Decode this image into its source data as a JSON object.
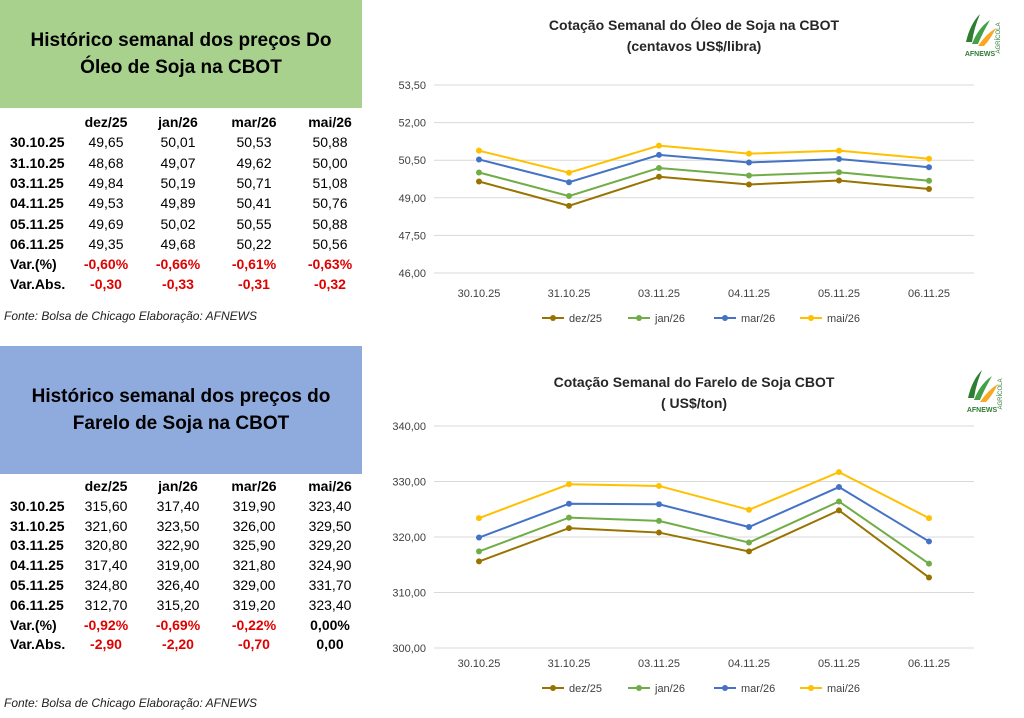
{
  "oil": {
    "table_title": "Histórico semanal dos preços Do Óleo de Soja na CBOT",
    "columns": [
      "dez/25",
      "jan/26",
      "mar/26",
      "mai/26"
    ],
    "rows": [
      {
        "date": "30.10.25",
        "values": [
          "49,65",
          "50,01",
          "50,53",
          "50,88"
        ]
      },
      {
        "date": "31.10.25",
        "values": [
          "48,68",
          "49,07",
          "49,62",
          "50,00"
        ]
      },
      {
        "date": "03.11.25",
        "values": [
          "49,84",
          "50,19",
          "50,71",
          "51,08"
        ]
      },
      {
        "date": "04.11.25",
        "values": [
          "49,53",
          "49,89",
          "50,41",
          "50,76"
        ]
      },
      {
        "date": "05.11.25",
        "values": [
          "49,69",
          "50,02",
          "50,55",
          "50,88"
        ]
      },
      {
        "date": "06.11.25",
        "values": [
          "49,35",
          "49,68",
          "50,22",
          "50,56"
        ]
      }
    ],
    "var_pct_label": "Var.(%)",
    "var_pct": [
      "-0,60%",
      "-0,66%",
      "-0,61%",
      "-0,63%"
    ],
    "var_abs_label": "Var.Abs.",
    "var_abs": [
      "-0,30",
      "-0,33",
      "-0,31",
      "-0,32"
    ],
    "source": "Fonte: Bolsa de Chicago Elaboração: AFNEWS"
  },
  "meal": {
    "table_title": "Histórico semanal dos preços do Farelo de Soja na CBOT",
    "columns": [
      "dez/25",
      "jan/26",
      "mar/26",
      "mai/26"
    ],
    "rows": [
      {
        "date": "30.10.25",
        "values": [
          "315,60",
          "317,40",
          "319,90",
          "323,40"
        ]
      },
      {
        "date": "31.10.25",
        "values": [
          "321,60",
          "323,50",
          "326,00",
          "329,50"
        ]
      },
      {
        "date": "03.11.25",
        "values": [
          "320,80",
          "322,90",
          "325,90",
          "329,20"
        ]
      },
      {
        "date": "04.11.25",
        "values": [
          "317,40",
          "319,00",
          "321,80",
          "324,90"
        ]
      },
      {
        "date": "05.11.25",
        "values": [
          "324,80",
          "326,40",
          "329,00",
          "331,70"
        ]
      },
      {
        "date": "06.11.25",
        "values": [
          "312,70",
          "315,20",
          "319,20",
          "323,40"
        ]
      }
    ],
    "var_pct_label": "Var.(%)",
    "var_pct": [
      "-0,92%",
      "-0,69%",
      "-0,22%",
      "0,00%"
    ],
    "var_abs_label": "Var.Abs.",
    "var_abs": [
      "-2,90",
      "-2,20",
      "-0,70",
      "0,00"
    ],
    "source": "Fonte: Bolsa de Chicago Elaboração: AFNEWS"
  },
  "logo": {
    "text": "AFNEWS",
    "side_text": "AGRÍCOLA"
  },
  "colors": {
    "oil_title_bg": "#a9d18e",
    "meal_title_bg": "#8faadc",
    "negative": "#e00000",
    "grid": "#d9d9d9",
    "axis_text": "#404040"
  },
  "chart_data": [
    {
      "type": "line",
      "title": "Cotação Semanal do Óleo de Soja na CBOT",
      "subtitle": "(centavos US$/libra)",
      "categories": [
        "30.10.25",
        "31.10.25",
        "03.11.25",
        "04.11.25",
        "05.11.25",
        "06.11.25"
      ],
      "series": [
        {
          "name": "dez/25",
          "color": "#997300",
          "values": [
            49.65,
            48.68,
            49.84,
            49.53,
            49.69,
            49.35
          ]
        },
        {
          "name": "jan/26",
          "color": "#70ad47",
          "values": [
            50.01,
            49.07,
            50.19,
            49.89,
            50.02,
            49.68
          ]
        },
        {
          "name": "mar/26",
          "color": "#4472c4",
          "values": [
            50.53,
            49.62,
            50.71,
            50.41,
            50.55,
            50.22
          ]
        },
        {
          "name": "mai/26",
          "color": "#ffc000",
          "values": [
            50.88,
            50.0,
            51.08,
            50.76,
            50.88,
            50.56
          ]
        }
      ],
      "ylim": [
        46.0,
        53.5
      ],
      "yticks": [
        46.0,
        47.5,
        49.0,
        50.5,
        52.0,
        53.5
      ],
      "ytick_labels": [
        "46,00",
        "47,50",
        "49,00",
        "50,50",
        "52,00",
        "53,50"
      ],
      "grid": true,
      "legend": "bottom"
    },
    {
      "type": "line",
      "title": "Cotação Semanal do Farelo de Soja CBOT",
      "subtitle": "( US$/ton)",
      "categories": [
        "30.10.25",
        "31.10.25",
        "03.11.25",
        "04.11.25",
        "05.11.25",
        "06.11.25"
      ],
      "series": [
        {
          "name": "dez/25",
          "color": "#997300",
          "values": [
            315.6,
            321.6,
            320.8,
            317.4,
            324.8,
            312.7
          ]
        },
        {
          "name": "jan/26",
          "color": "#70ad47",
          "values": [
            317.4,
            323.5,
            322.9,
            319.0,
            326.4,
            315.2
          ]
        },
        {
          "name": "mar/26",
          "color": "#4472c4",
          "values": [
            319.9,
            326.0,
            325.9,
            321.8,
            329.0,
            319.2
          ]
        },
        {
          "name": "mai/26",
          "color": "#ffc000",
          "values": [
            323.4,
            329.5,
            329.2,
            324.9,
            331.7,
            323.4
          ]
        }
      ],
      "ylim": [
        300,
        340
      ],
      "yticks": [
        300,
        310,
        320,
        330,
        340
      ],
      "ytick_labels": [
        "300,00",
        "310,00",
        "320,00",
        "330,00",
        "340,00"
      ],
      "grid": true,
      "legend": "bottom"
    }
  ]
}
